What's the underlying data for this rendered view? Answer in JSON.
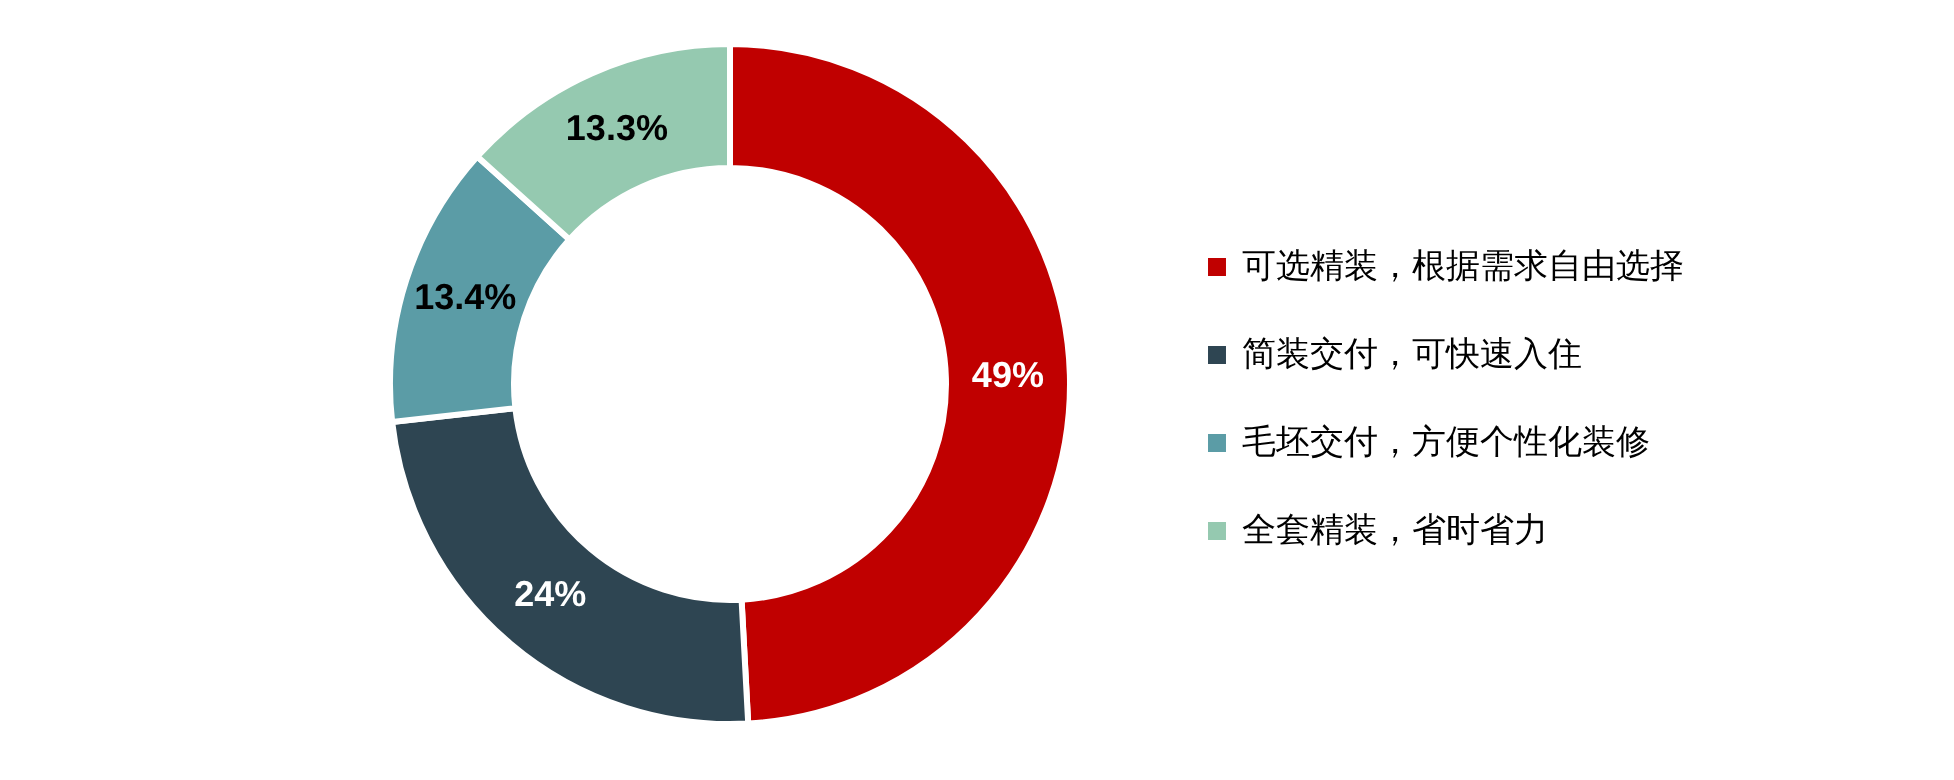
{
  "chart_data": {
    "type": "donut",
    "categories": [
      "可选精装，根据需求自由选择",
      "简装交付，可快速入住",
      "毛坯交付，方便个性化装修",
      "全套精装，省时省力"
    ],
    "values": [
      49,
      24,
      13.4,
      13.3
    ],
    "colors": [
      "#c00000",
      "#2e4552",
      "#5b9ca6",
      "#95c9b0"
    ],
    "value_labels": [
      "49%",
      "24%",
      "13.4%",
      "13.3%"
    ],
    "legend": "right"
  }
}
